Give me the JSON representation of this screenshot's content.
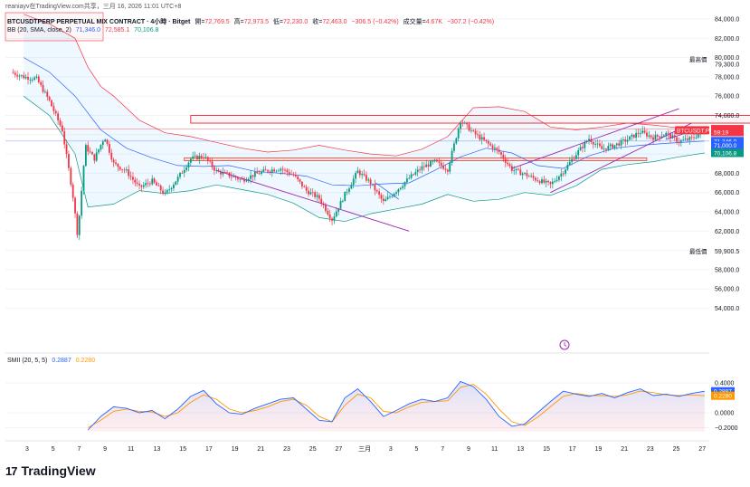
{
  "caption": "reaniayv在TradingView.com共享，三月 16, 2026 11:01 UTC+8",
  "header": {
    "symbol": "BTCUSDTPERP PERPETUAL MIX CONTRACT · 4小時 · Bitget",
    "open_label": "開=",
    "open_value": "72,769.5",
    "high_label": "高=",
    "high_value": "72,973.5",
    "low_label": "低=",
    "low_value": "72,230.0",
    "close_label": "收=",
    "close_value": "72,463.0",
    "change": "−306.5 (−0.42%)",
    "volume_label": "成交量=",
    "volume_value": "4.67K",
    "volume_change": "−307.2 (−0.42%)"
  },
  "bb_legend": {
    "label": "BB (20, SMA, close, 2)",
    "basis": "71,346.0",
    "upper": "72,585.1",
    "lower": "70,106.8"
  },
  "smii_legend": {
    "label": "SMII (20, 5, 5)",
    "main": "0.2887",
    "signal": "0.2280"
  },
  "price_axis": {
    "ticks": [
      "84,000.0",
      "82,000.0",
      "80,000.0",
      "78,000.0",
      "76,000.0",
      "74,000.0",
      "68,000.0",
      "66,000.0",
      "64,000.0",
      "62,000.0",
      "58,000.0",
      "56,000.0",
      "54,000.0"
    ],
    "tick_values": [
      84000,
      82000,
      80000,
      78000,
      76000,
      74000,
      68000,
      66000,
      64000,
      62000,
      58000,
      56000,
      54000
    ],
    "high_label": "最高價",
    "high_value": "79,300.0",
    "low_label": "最低價",
    "low_value": "59,900.5",
    "badges": [
      {
        "text": "72,585.1",
        "value": 72585.1,
        "color": "#f23645"
      },
      {
        "text": "72,463.0",
        "value": 72463.0,
        "color": "#f23645"
      },
      {
        "text": "59:19",
        "value": 72263.0,
        "color": "#f23645"
      },
      {
        "text": "71,346.0",
        "value": 71346.0,
        "color": "#2962ff"
      },
      {
        "text": "71,000.0",
        "value": 70880.0,
        "color": "#2962ff"
      },
      {
        "text": "70,106.8",
        "value": 70106.8,
        "color": "#089981"
      }
    ],
    "symbol_badge": "BTCUSDT.P"
  },
  "smii_axis": {
    "ticks": [
      "0.4000",
      "0.0000",
      "−0.2000"
    ],
    "tick_values": [
      0.4,
      0.0,
      -0.2
    ],
    "badges": [
      {
        "text": "0.2887",
        "value": 0.2887,
        "color": "#2962ff"
      },
      {
        "text": "0.2280",
        "value": 0.228,
        "color": "#ff9800"
      }
    ]
  },
  "time_axis": {
    "labels": [
      "3",
      "5",
      "7",
      "9",
      "11",
      "13",
      "15",
      "17",
      "19",
      "21",
      "23",
      "25",
      "27",
      "三月",
      "3",
      "5",
      "7",
      "9",
      "11",
      "13",
      "15",
      "17",
      "19",
      "21",
      "23",
      "25",
      "27"
    ]
  },
  "brand": {
    "logo": "17",
    "name": "TradingView"
  },
  "chart_data": {
    "type": "candlestick",
    "title": "BTCUSDTPERP PERPETUAL MIX CONTRACT · 4小時 · Bitget",
    "timeframe": "4h",
    "ylim": [
      53000,
      85000
    ],
    "x_labels": [
      "3",
      "5",
      "7",
      "9",
      "11",
      "13",
      "15",
      "17",
      "19",
      "21",
      "23",
      "25",
      "27",
      "三月",
      "3",
      "5",
      "7",
      "9",
      "11",
      "13",
      "15",
      "17",
      "19",
      "21",
      "23",
      "25",
      "27"
    ],
    "price_path": [
      {
        "day": 0,
        "price": 78500
      },
      {
        "day": 1,
        "price": 78000
      },
      {
        "day": 2,
        "price": 77800
      },
      {
        "day": 3,
        "price": 75500
      },
      {
        "day": 4,
        "price": 72500
      },
      {
        "day": 4.8,
        "price": 66000
      },
      {
        "day": 5.2,
        "price": 61500
      },
      {
        "day": 5.8,
        "price": 70800
      },
      {
        "day": 6.5,
        "price": 69500
      },
      {
        "day": 7.3,
        "price": 71800
      },
      {
        "day": 8,
        "price": 69000
      },
      {
        "day": 9,
        "price": 68200
      },
      {
        "day": 10,
        "price": 66500
      },
      {
        "day": 11,
        "price": 67200
      },
      {
        "day": 12,
        "price": 65800
      },
      {
        "day": 13,
        "price": 67500
      },
      {
        "day": 14,
        "price": 69500
      },
      {
        "day": 15,
        "price": 69800
      },
      {
        "day": 16,
        "price": 68200
      },
      {
        "day": 17,
        "price": 67800
      },
      {
        "day": 18,
        "price": 67300
      },
      {
        "day": 19,
        "price": 67900
      },
      {
        "day": 20,
        "price": 68300
      },
      {
        "day": 21,
        "price": 68500
      },
      {
        "day": 22,
        "price": 67800
      },
      {
        "day": 23,
        "price": 66200
      },
      {
        "day": 24,
        "price": 65400
      },
      {
        "day": 25,
        "price": 63200
      },
      {
        "day": 26,
        "price": 65800
      },
      {
        "day": 27,
        "price": 68200
      },
      {
        "day": 28,
        "price": 67000
      },
      {
        "day": 29,
        "price": 65000
      },
      {
        "day": 30,
        "price": 66200
      },
      {
        "day": 31,
        "price": 67500
      },
      {
        "day": 32,
        "price": 68600
      },
      {
        "day": 33,
        "price": 69200
      },
      {
        "day": 34,
        "price": 68400
      },
      {
        "day": 35,
        "price": 73500
      },
      {
        "day": 36,
        "price": 72200
      },
      {
        "day": 37,
        "price": 71200
      },
      {
        "day": 38,
        "price": 70200
      },
      {
        "day": 39,
        "price": 68400
      },
      {
        "day": 40,
        "price": 67900
      },
      {
        "day": 41,
        "price": 67300
      },
      {
        "day": 42,
        "price": 66800
      },
      {
        "day": 43,
        "price": 68200
      },
      {
        "day": 44,
        "price": 70000
      },
      {
        "day": 45,
        "price": 71600
      },
      {
        "day": 46,
        "price": 70500
      },
      {
        "day": 47,
        "price": 70900
      },
      {
        "day": 48,
        "price": 71500
      },
      {
        "day": 49,
        "price": 72300
      },
      {
        "day": 50,
        "price": 71700
      },
      {
        "day": 51,
        "price": 72100
      },
      {
        "day": 52,
        "price": 71300
      },
      {
        "day": 53,
        "price": 71600
      },
      {
        "day": 54,
        "price": 72463
      }
    ],
    "bb_upper_path": [
      {
        "day": 1,
        "price": 84500
      },
      {
        "day": 3,
        "price": 83500
      },
      {
        "day": 5,
        "price": 82000
      },
      {
        "day": 6,
        "price": 79000
      },
      {
        "day": 7,
        "price": 77000
      },
      {
        "day": 8,
        "price": 76000
      },
      {
        "day": 10,
        "price": 73500
      },
      {
        "day": 12,
        "price": 72200
      },
      {
        "day": 14,
        "price": 71800
      },
      {
        "day": 16,
        "price": 71200
      },
      {
        "day": 18,
        "price": 70600
      },
      {
        "day": 20,
        "price": 70200
      },
      {
        "day": 22,
        "price": 70400
      },
      {
        "day": 24,
        "price": 70900
      },
      {
        "day": 26,
        "price": 70400
      },
      {
        "day": 28,
        "price": 70000
      },
      {
        "day": 30,
        "price": 69800
      },
      {
        "day": 32,
        "price": 70500
      },
      {
        "day": 34,
        "price": 71800
      },
      {
        "day": 36,
        "price": 74800
      },
      {
        "day": 38,
        "price": 74900
      },
      {
        "day": 40,
        "price": 74400
      },
      {
        "day": 42,
        "price": 72800
      },
      {
        "day": 44,
        "price": 72500
      },
      {
        "day": 46,
        "price": 72800
      },
      {
        "day": 48,
        "price": 73200
      },
      {
        "day": 50,
        "price": 73000
      },
      {
        "day": 52,
        "price": 72700
      },
      {
        "day": 54,
        "price": 72585
      }
    ],
    "bb_basis_path": [
      {
        "day": 1,
        "price": 80000
      },
      {
        "day": 3,
        "price": 78500
      },
      {
        "day": 5,
        "price": 76000
      },
      {
        "day": 7,
        "price": 72500
      },
      {
        "day": 9,
        "price": 70600
      },
      {
        "day": 11,
        "price": 69600
      },
      {
        "day": 13,
        "price": 68800
      },
      {
        "day": 15,
        "price": 68700
      },
      {
        "day": 17,
        "price": 68800
      },
      {
        "day": 19,
        "price": 68200
      },
      {
        "day": 21,
        "price": 68000
      },
      {
        "day": 23,
        "price": 67700
      },
      {
        "day": 25,
        "price": 66800
      },
      {
        "day": 27,
        "price": 66700
      },
      {
        "day": 29,
        "price": 66900
      },
      {
        "day": 31,
        "price": 67000
      },
      {
        "day": 33,
        "price": 68300
      },
      {
        "day": 35,
        "price": 69700
      },
      {
        "day": 37,
        "price": 70600
      },
      {
        "day": 39,
        "price": 70100
      },
      {
        "day": 41,
        "price": 68800
      },
      {
        "day": 43,
        "price": 68500
      },
      {
        "day": 45,
        "price": 69800
      },
      {
        "day": 47,
        "price": 70600
      },
      {
        "day": 49,
        "price": 70900
      },
      {
        "day": 51,
        "price": 71100
      },
      {
        "day": 54,
        "price": 71346
      }
    ],
    "bb_lower_path": [
      {
        "day": 1,
        "price": 76000
      },
      {
        "day": 3,
        "price": 74000
      },
      {
        "day": 5,
        "price": 70000
      },
      {
        "day": 6,
        "price": 64500
      },
      {
        "day": 8,
        "price": 64800
      },
      {
        "day": 10,
        "price": 66200
      },
      {
        "day": 12,
        "price": 65900
      },
      {
        "day": 14,
        "price": 66200
      },
      {
        "day": 16,
        "price": 66800
      },
      {
        "day": 18,
        "price": 66300
      },
      {
        "day": 20,
        "price": 65800
      },
      {
        "day": 22,
        "price": 64900
      },
      {
        "day": 24,
        "price": 63400
      },
      {
        "day": 26,
        "price": 63000
      },
      {
        "day": 28,
        "price": 63800
      },
      {
        "day": 30,
        "price": 64300
      },
      {
        "day": 32,
        "price": 64800
      },
      {
        "day": 34,
        "price": 65800
      },
      {
        "day": 36,
        "price": 65100
      },
      {
        "day": 38,
        "price": 65300
      },
      {
        "day": 40,
        "price": 66000
      },
      {
        "day": 42,
        "price": 65700
      },
      {
        "day": 44,
        "price": 66700
      },
      {
        "day": 46,
        "price": 68400
      },
      {
        "day": 48,
        "price": 68900
      },
      {
        "day": 50,
        "price": 69200
      },
      {
        "day": 52,
        "price": 69700
      },
      {
        "day": 54,
        "price": 70106.8
      }
    ],
    "smii_main_path": [
      {
        "day": 6,
        "price": -0.23
      },
      {
        "day": 7,
        "price": -0.05
      },
      {
        "day": 8,
        "price": 0.08
      },
      {
        "day": 9,
        "price": 0.06
      },
      {
        "day": 10,
        "price": 0.0
      },
      {
        "day": 11,
        "price": 0.03
      },
      {
        "day": 12,
        "price": -0.08
      },
      {
        "day": 13,
        "price": 0.05
      },
      {
        "day": 14,
        "price": 0.22
      },
      {
        "day": 15,
        "price": 0.3
      },
      {
        "day": 16,
        "price": 0.12
      },
      {
        "day": 17,
        "price": 0.0
      },
      {
        "day": 18,
        "price": -0.02
      },
      {
        "day": 19,
        "price": 0.06
      },
      {
        "day": 20,
        "price": 0.12
      },
      {
        "day": 21,
        "price": 0.18
      },
      {
        "day": 22,
        "price": 0.2
      },
      {
        "day": 23,
        "price": 0.05
      },
      {
        "day": 24,
        "price": -0.1
      },
      {
        "day": 25,
        "price": -0.12
      },
      {
        "day": 26,
        "price": 0.2
      },
      {
        "day": 27,
        "price": 0.32
      },
      {
        "day": 28,
        "price": 0.15
      },
      {
        "day": 29,
        "price": -0.05
      },
      {
        "day": 30,
        "price": 0.03
      },
      {
        "day": 31,
        "price": 0.12
      },
      {
        "day": 32,
        "price": 0.18
      },
      {
        "day": 33,
        "price": 0.15
      },
      {
        "day": 34,
        "price": 0.2
      },
      {
        "day": 35,
        "price": 0.42
      },
      {
        "day": 36,
        "price": 0.35
      },
      {
        "day": 37,
        "price": 0.18
      },
      {
        "day": 38,
        "price": -0.05
      },
      {
        "day": 39,
        "price": -0.18
      },
      {
        "day": 40,
        "price": -0.15
      },
      {
        "day": 41,
        "price": 0.0
      },
      {
        "day": 42,
        "price": 0.15
      },
      {
        "day": 43,
        "price": 0.29
      },
      {
        "day": 44,
        "price": 0.25
      },
      {
        "day": 45,
        "price": 0.22
      },
      {
        "day": 46,
        "price": 0.26
      },
      {
        "day": 47,
        "price": 0.2
      },
      {
        "day": 48,
        "price": 0.27
      },
      {
        "day": 49,
        "price": 0.32
      },
      {
        "day": 50,
        "price": 0.23
      },
      {
        "day": 51,
        "price": 0.25
      },
      {
        "day": 52,
        "price": 0.22
      },
      {
        "day": 53,
        "price": 0.26
      },
      {
        "day": 54,
        "price": 0.2887
      }
    ],
    "smii_signal_path": [
      {
        "day": 6,
        "price": -0.2
      },
      {
        "day": 7,
        "price": -0.1
      },
      {
        "day": 8,
        "price": 0.02
      },
      {
        "day": 9,
        "price": 0.05
      },
      {
        "day": 10,
        "price": 0.02
      },
      {
        "day": 11,
        "price": 0.01
      },
      {
        "day": 12,
        "price": -0.05
      },
      {
        "day": 13,
        "price": 0.0
      },
      {
        "day": 14,
        "price": 0.14
      },
      {
        "day": 15,
        "price": 0.24
      },
      {
        "day": 16,
        "price": 0.18
      },
      {
        "day": 17,
        "price": 0.05
      },
      {
        "day": 18,
        "price": 0.0
      },
      {
        "day": 19,
        "price": 0.03
      },
      {
        "day": 20,
        "price": 0.08
      },
      {
        "day": 21,
        "price": 0.15
      },
      {
        "day": 22,
        "price": 0.18
      },
      {
        "day": 23,
        "price": 0.1
      },
      {
        "day": 24,
        "price": -0.05
      },
      {
        "day": 25,
        "price": -0.12
      },
      {
        "day": 26,
        "price": 0.1
      },
      {
        "day": 27,
        "price": 0.25
      },
      {
        "day": 28,
        "price": 0.2
      },
      {
        "day": 29,
        "price": 0.02
      },
      {
        "day": 30,
        "price": 0.0
      },
      {
        "day": 31,
        "price": 0.08
      },
      {
        "day": 32,
        "price": 0.14
      },
      {
        "day": 33,
        "price": 0.15
      },
      {
        "day": 34,
        "price": 0.16
      },
      {
        "day": 35,
        "price": 0.34
      },
      {
        "day": 36,
        "price": 0.38
      },
      {
        "day": 37,
        "price": 0.25
      },
      {
        "day": 38,
        "price": 0.05
      },
      {
        "day": 39,
        "price": -0.12
      },
      {
        "day": 40,
        "price": -0.17
      },
      {
        "day": 41,
        "price": -0.06
      },
      {
        "day": 42,
        "price": 0.08
      },
      {
        "day": 43,
        "price": 0.22
      },
      {
        "day": 44,
        "price": 0.26
      },
      {
        "day": 45,
        "price": 0.23
      },
      {
        "day": 46,
        "price": 0.23
      },
      {
        "day": 47,
        "price": 0.22
      },
      {
        "day": 48,
        "price": 0.24
      },
      {
        "day": 49,
        "price": 0.29
      },
      {
        "day": 50,
        "price": 0.27
      },
      {
        "day": 51,
        "price": 0.24
      },
      {
        "day": 52,
        "price": 0.23
      },
      {
        "day": 53,
        "price": 0.24
      },
      {
        "day": 54,
        "price": 0.228
      }
    ],
    "drawings": {
      "upper_zone": {
        "day_start": 14,
        "day_end": 58.5,
        "price_low": 73200,
        "price_high": 74000
      },
      "mid_zone": {
        "day_start": 13.5,
        "day_end": 49.5,
        "price_low": 69300,
        "price_high": 69600
      },
      "wedge_upper": [
        {
          "day": 39,
          "price": 68500
        },
        {
          "day": 52,
          "price": 74700
        }
      ],
      "wedge_lower": [
        {
          "day": 42,
          "price": 66000
        },
        {
          "day": 53,
          "price": 73200
        }
      ],
      "down_channel": [
        {
          "day": 16,
          "price": 68300
        },
        {
          "day": 31,
          "price": 62000
        }
      ],
      "small_channel": [
        {
          "day": 51,
          "price": 71500
        },
        {
          "day": 54,
          "price": 72800
        }
      ]
    },
    "colors": {
      "up": "#089981",
      "down": "#f23645",
      "bb_upper": "#f23645",
      "bb_basis": "#2962ff",
      "bb_lower": "#089981",
      "bb_fill": "#2196f3",
      "smii_main": "#2962ff",
      "smii_signal": "#ff9800",
      "drawing": "#f23645",
      "trendline": "#9c27b0",
      "zone_mid": "#ff9800"
    }
  }
}
